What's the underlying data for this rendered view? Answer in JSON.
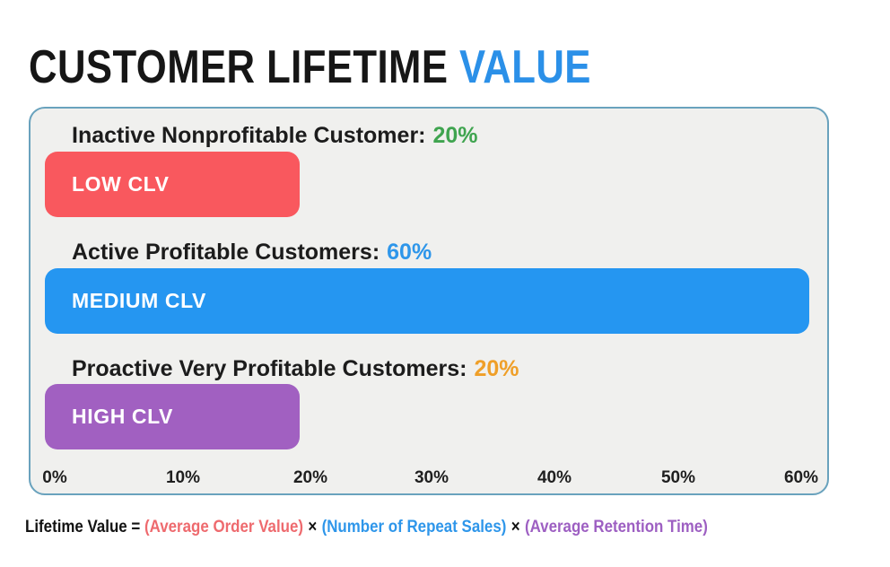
{
  "title": {
    "main": "CUSTOMER LIFETIME",
    "accent": "VALUE",
    "accent_color": "#2b90e8"
  },
  "chart_data": {
    "type": "bar",
    "orientation": "horizontal",
    "title": "CUSTOMER LIFETIME VALUE",
    "xlabel": "",
    "ylabel": "",
    "xlim": [
      0,
      60
    ],
    "x_ticks": [
      "0%",
      "10%",
      "20%",
      "30%",
      "40%",
      "50%",
      "60%"
    ],
    "grid": false,
    "legend": false,
    "panel_background": "#f0f0ee",
    "panel_border_color": "#69a2bd",
    "rows": [
      {
        "label": "Inactive Nonprofitable Customer:",
        "value_label": "20%",
        "value": 20,
        "value_color": "#3fa44f",
        "bar_label": "LOW CLV",
        "bar_color": "#f9585e"
      },
      {
        "label": "Active Profitable Customers:",
        "value_label": "60%",
        "value": 60,
        "value_color": "#2e96ea",
        "bar_label": "MEDIUM CLV",
        "bar_color": "#2596f1"
      },
      {
        "label": "Proactive Very Profitable Customers:",
        "value_label": "20%",
        "value": 20,
        "value_color": "#ef9f28",
        "bar_label": "HIGH CLV",
        "bar_color": "#a160c1"
      }
    ]
  },
  "formula": {
    "prefix": "Lifetime Value =",
    "operator": "×",
    "terms": [
      {
        "text": "(Average Order Value)",
        "color": "#ee6a6e"
      },
      {
        "text": "(Number of Repeat Sales)",
        "color": "#2e96ea"
      },
      {
        "text": "(Average Retention Time)",
        "color": "#9d5fc2"
      }
    ]
  }
}
